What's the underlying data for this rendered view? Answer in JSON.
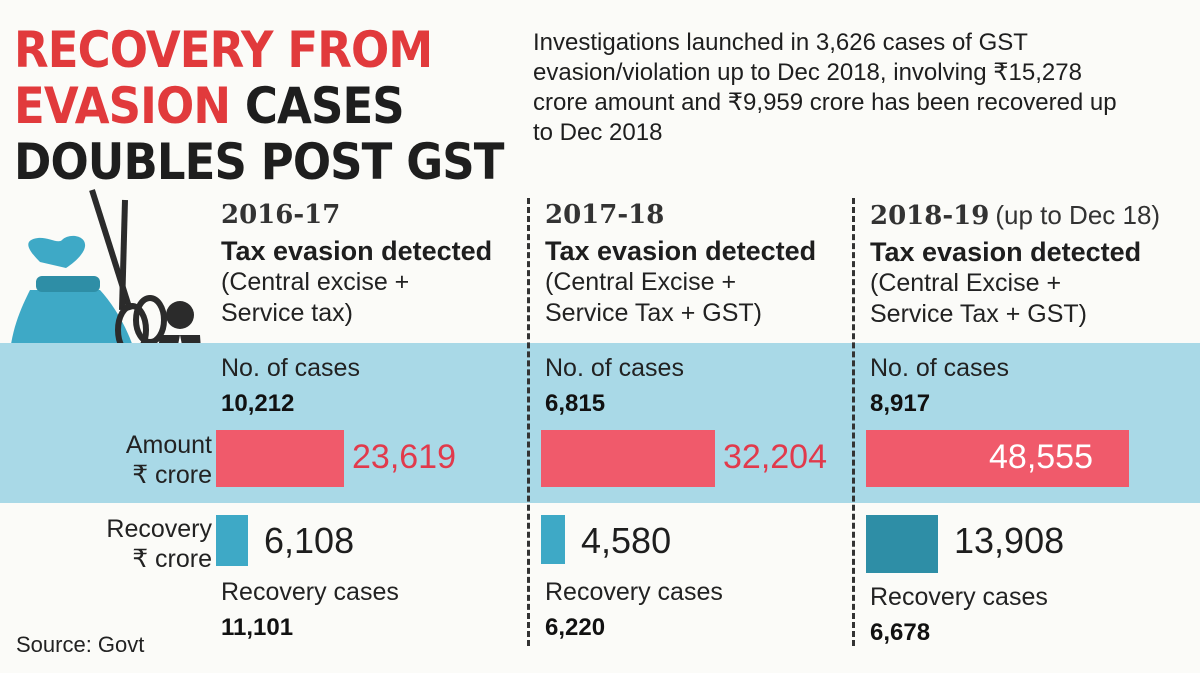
{
  "title": {
    "line1": "RECOVERY FROM",
    "line2_red": "EVASION",
    "line2_dark": "CASES",
    "line3": "DOUBLES POST GST"
  },
  "intro": "Investigations launched in 3,626 cases of GST evasion/violation up to Dec 2018, involving ₹15,278 crore amount and ₹9,959 crore has been recovered up to Dec 2018",
  "labels": {
    "amount_line1": "Amount",
    "amount_line2": "₹ crore",
    "recovery_line1": "Recovery",
    "recovery_line2": "₹ crore"
  },
  "source": "Source: Govt",
  "icons": [
    "rupee-money-bag-icon",
    "scissors-icon",
    "businessman-icon"
  ],
  "colors": {
    "title_red": "#e13a3c",
    "band": "#a9d9e7",
    "amount_bar": "#f05a6b",
    "recovery_bar": "#3ea9c6",
    "recovery_bar_dark": "#2e8ea6"
  },
  "chart_data": {
    "type": "bar",
    "title": "RECOVERY FROM EVASION CASES DOUBLES POST GST",
    "categories": [
      "2016-17",
      "2017-18",
      "2018-19"
    ],
    "year_notes": [
      "",
      "",
      "(up to Dec 18)"
    ],
    "category_headings": [
      "Tax evasion detected",
      "Tax evasion detected",
      "Tax evasion detected"
    ],
    "category_subtitles": [
      [
        "(Central excise +",
        "Service tax)"
      ],
      [
        "(Central Excise +",
        "Service Tax + GST)"
      ],
      [
        "(Central Excise +",
        "Service Tax + GST)"
      ]
    ],
    "cases_label": "No. of cases",
    "cases": [
      "10,212",
      "6,815",
      "8,917"
    ],
    "recovery_cases_label": "Recovery cases",
    "recovery_cases": [
      "11,101",
      "6,220",
      "6,678"
    ],
    "series": [
      {
        "name": "Amount ₹ crore",
        "values": [
          23619,
          32204,
          48555
        ],
        "labels": [
          "23,619",
          "32,204",
          "48,555"
        ]
      },
      {
        "name": "Recovery ₹ crore",
        "values": [
          6108,
          4580,
          13908
        ],
        "labels": [
          "6,108",
          "4,580",
          "13,908"
        ]
      }
    ]
  }
}
